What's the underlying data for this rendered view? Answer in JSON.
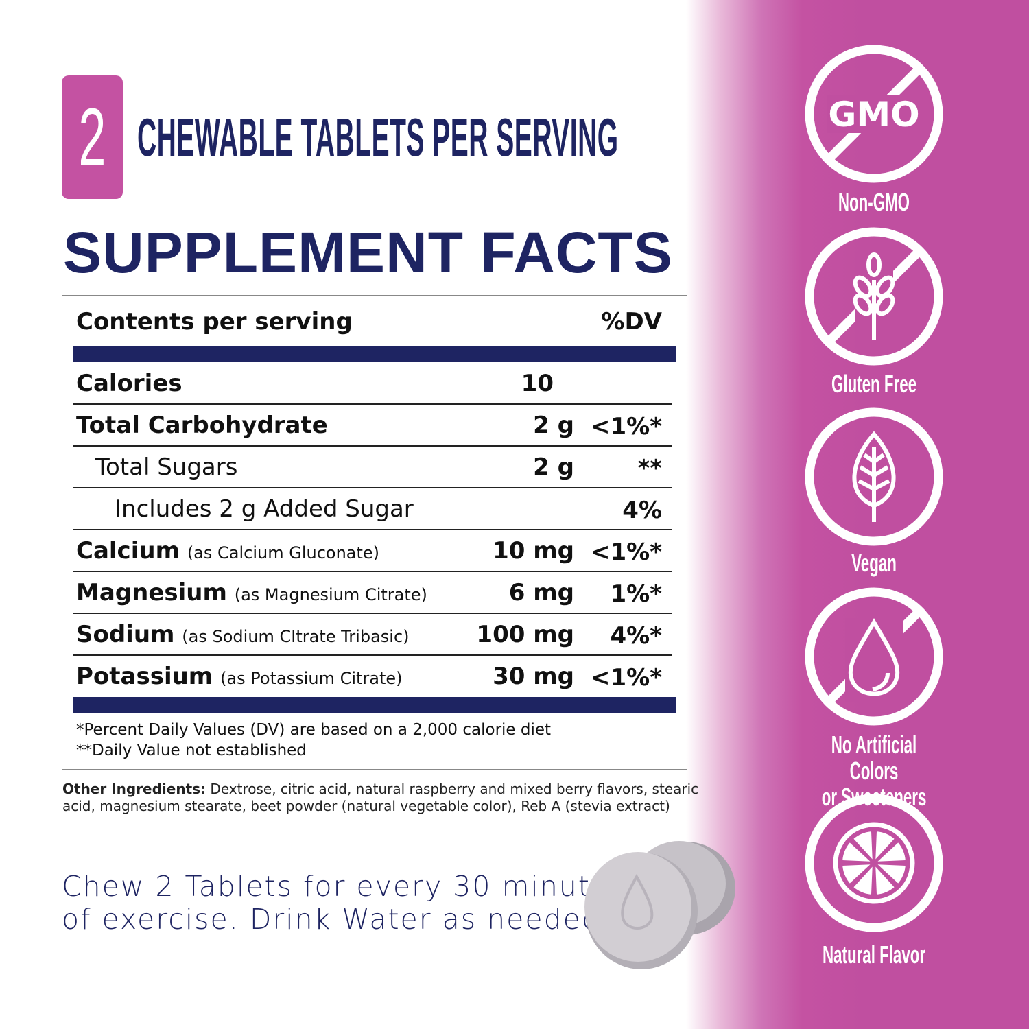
{
  "header": {
    "count": "2",
    "serving_text": "CHEWABLE TABLETS PER SERVING"
  },
  "title": "SUPPLEMENT FACTS",
  "facts": {
    "header_label": "Contents per serving",
    "header_dv": "%DV",
    "rows": [
      {
        "name": "Calories",
        "sub": "",
        "amount": "10",
        "dv": ""
      },
      {
        "name": "Total Carbohydrate",
        "sub": "",
        "amount": "2 g",
        "dv": "<1%*"
      },
      {
        "name": "Total Sugars",
        "sub": "",
        "amount": "2 g",
        "dv": "**"
      },
      {
        "name": "Includes 2 g Added Sugar",
        "sub": "",
        "amount": "",
        "dv": "4%"
      },
      {
        "name": "Calcium",
        "sub": "(as Calcium Gluconate)",
        "amount": "10 mg",
        "dv": "<1%*"
      },
      {
        "name": "Magnesium",
        "sub": "(as Magnesium Citrate)",
        "amount": "6 mg",
        "dv": "1%*"
      },
      {
        "name": "Sodium",
        "sub": "(as Sodium CItrate Tribasic)",
        "amount": "100 mg",
        "dv": "4%*"
      },
      {
        "name": "Potassium",
        "sub": "(as Potassium Citrate)",
        "amount": "30 mg",
        "dv": "<1%*"
      }
    ],
    "footnote1": "*Percent Daily Values (DV) are based on a 2,000 calorie diet",
    "footnote2": "**Daily Value not established"
  },
  "ingredients": {
    "label": "Other Ingredients:",
    "text": " Dextrose, citric acid, natural raspberry and mixed berry flavors, stearic acid, magnesium stearate, beet powder (natural vegetable color), Reb A (stevia extract)"
  },
  "directions": {
    "line1": "Chew 2 Tablets for every 30 minutes",
    "line2": "of exercise. Drink Water as needed."
  },
  "badges": [
    {
      "icon": "no-gmo-icon",
      "gmo_text": "GMO",
      "label": "Non-GMO"
    },
    {
      "icon": "no-gluten-wheat-icon",
      "label": "Gluten Free"
    },
    {
      "icon": "vegan-leaf-icon",
      "label": "Vegan"
    },
    {
      "icon": "no-artificial-drop-icon",
      "label": "No Artificial Colors",
      "label2": "or Sweeteners"
    },
    {
      "icon": "citrus-slice-icon",
      "label": "Natural Flavor"
    }
  ],
  "colors": {
    "magenta": "#c04fa0",
    "navy": "#1e2462"
  }
}
